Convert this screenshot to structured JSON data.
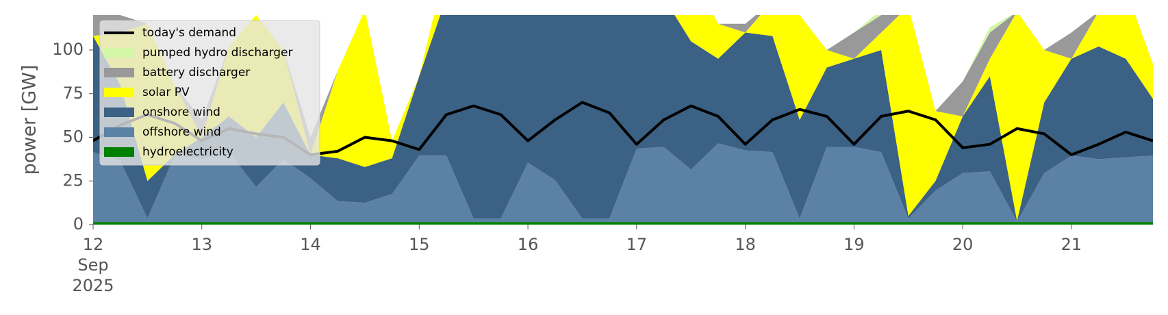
{
  "chart_data": {
    "type": "area",
    "ylabel": "power [GW]",
    "x": [
      12,
      12.25,
      12.5,
      12.75,
      13,
      13.25,
      13.5,
      13.75,
      14,
      14.25,
      14.5,
      14.75,
      15,
      15.25,
      15.5,
      15.75,
      16,
      16.25,
      16.5,
      16.75,
      17,
      17.25,
      17.5,
      17.75,
      18,
      18.25,
      18.5,
      18.75,
      19,
      19.25,
      19.5,
      19.75,
      20,
      20.25,
      20.5,
      20.75,
      21,
      21.25,
      21.5,
      21.75
    ],
    "xlim": [
      12,
      21.75
    ],
    "xticks": [
      {
        "value": 12,
        "label": "12 Sep 2025"
      },
      13,
      14,
      15,
      16,
      17,
      18,
      19,
      20,
      21
    ],
    "ylim": [
      0,
      120
    ],
    "yticks": [
      0,
      25,
      50,
      75,
      100
    ],
    "grid": false,
    "legend": "upper left",
    "series": [
      {
        "name": "today's demand",
        "type": "line",
        "color": "#000000",
        "values": [
          48,
          57,
          63,
          58,
          48,
          55,
          52,
          50,
          40,
          42,
          50,
          48,
          43,
          63,
          68,
          63,
          48,
          60,
          70,
          64,
          46,
          60,
          68,
          62,
          46,
          60,
          66,
          62,
          46,
          62,
          65,
          60,
          44,
          46,
          55,
          52,
          40,
          46,
          53,
          48
        ]
      },
      {
        "name": "hydroelectricity",
        "type": "area",
        "color": "#008000",
        "values": [
          1.5,
          1.5,
          1.5,
          1.5,
          1.5,
          1.5,
          1.5,
          1.5,
          1.5,
          1.5,
          1.5,
          1.5,
          1.5,
          1.5,
          1.5,
          1.5,
          1.5,
          1.5,
          1.5,
          1.5,
          1.5,
          1.5,
          1.5,
          1.5,
          1.5,
          1.5,
          1.5,
          1.5,
          1.5,
          1.5,
          1.5,
          1.5,
          1.5,
          1.5,
          1.5,
          1.5,
          1.5,
          1.5,
          1.5,
          1.5
        ]
      },
      {
        "name": "offshore wind",
        "type": "area",
        "color": "#5b82a6",
        "values": [
          40,
          35,
          2,
          38,
          36,
          40,
          20,
          36,
          25,
          12,
          11,
          16,
          38,
          38,
          2,
          2,
          34,
          24,
          2,
          2,
          42,
          43,
          30,
          45,
          41,
          40,
          2,
          43,
          43,
          40,
          2,
          18,
          28,
          29,
          0.2,
          28,
          38,
          36,
          37,
          38
        ]
      },
      {
        "name": "onshore wind",
        "type": "area",
        "color": "#3b6184",
        "values": [
          66.5,
          43.5,
          21.5,
          0.5,
          12.5,
          20.5,
          28.5,
          32.5,
          13.5,
          24.5,
          20.5,
          20.5,
          45.5,
          90.5,
          126.5,
          126.5,
          94.5,
          104.5,
          126.5,
          126.5,
          86.5,
          85.5,
          73.5,
          48.5,
          67.5,
          66.5,
          56.5,
          45.5,
          50.5,
          58.5,
          1.5,
          5.5,
          32.5,
          54.5,
          0.3,
          40.5,
          55.5,
          64.5,
          56.5,
          32.5
        ]
      },
      {
        "name": "solar PV",
        "type": "area",
        "color": "#ffff00",
        "values": [
          0,
          30,
          90,
          40,
          0,
          40,
          70,
          30,
          0,
          50,
          90,
          10,
          0,
          20,
          40,
          0,
          0,
          20,
          40,
          0,
          0,
          30,
          40,
          20,
          0,
          20,
          60,
          10,
          0,
          10,
          120,
          40,
          0,
          10,
          120,
          30,
          0,
          20,
          40,
          20
        ]
      },
      {
        "name": "battery discharger",
        "type": "area",
        "color": "#999999",
        "values": [
          15,
          10,
          0,
          0,
          10,
          0,
          0,
          0,
          10,
          0,
          0,
          0,
          0,
          0,
          0,
          0,
          0,
          0,
          0,
          0,
          0,
          0,
          0,
          0,
          5,
          0,
          0,
          0,
          15,
          10,
          0,
          0,
          20,
          15,
          0,
          0,
          15,
          0,
          0,
          0
        ]
      },
      {
        "name": "pumped hydro discharger",
        "type": "area",
        "color": "#d2f7a6",
        "values": [
          0,
          0,
          0,
          0,
          0,
          0,
          0,
          0,
          0,
          0,
          0,
          0,
          0,
          0,
          0,
          0,
          0,
          0,
          0,
          0,
          0,
          0,
          0,
          0,
          0,
          0,
          0,
          0,
          0,
          3,
          0,
          0,
          0,
          3,
          0,
          0,
          0,
          0,
          0,
          0
        ]
      }
    ]
  }
}
